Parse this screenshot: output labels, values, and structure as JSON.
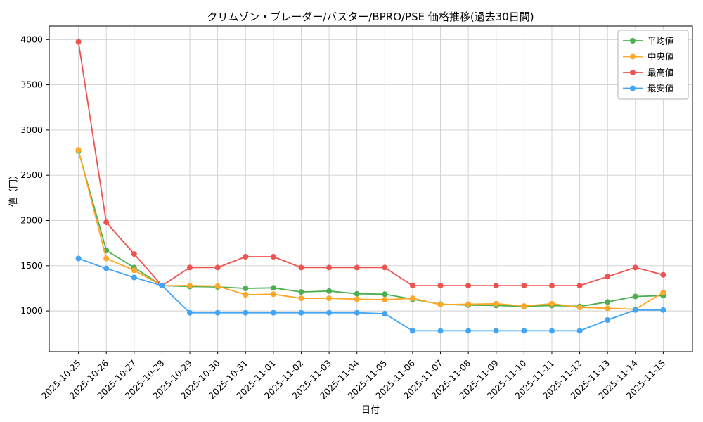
{
  "chart_data": {
    "type": "line",
    "title": "クリムゾン・ブレーダー/バスター/BPRO/PSE 価格推移(過去30日間)",
    "xlabel": "日付",
    "ylabel": "値（円）",
    "grid": true,
    "legend_position": "upper right",
    "ylim": [
      550,
      4150
    ],
    "yticks": [
      1000,
      1500,
      2000,
      2500,
      3000,
      3500,
      4000
    ],
    "x": [
      "2025-10-25",
      "2025-10-26",
      "2025-10-27",
      "2025-10-28",
      "2025-10-29",
      "2025-10-30",
      "2025-10-31",
      "2025-11-01",
      "2025-11-02",
      "2025-11-03",
      "2025-11-04",
      "2025-11-05",
      "2025-11-06",
      "2025-11-07",
      "2025-11-08",
      "2025-11-09",
      "2025-11-10",
      "2025-11-11",
      "2025-11-12",
      "2025-11-13",
      "2025-11-14",
      "2025-11-15"
    ],
    "series": [
      {
        "id": "average",
        "name": "平均値",
        "color": "#4caf50",
        "values": [
          2770,
          1670,
          1480,
          1280,
          1270,
          1265,
          1250,
          1255,
          1210,
          1220,
          1190,
          1185,
          1130,
          1075,
          1065,
          1060,
          1050,
          1060,
          1050,
          1100,
          1160,
          1170
        ]
      },
      {
        "id": "median",
        "name": "中央値",
        "color": "#ffa726",
        "values": [
          2780,
          1580,
          1450,
          1280,
          1280,
          1275,
          1180,
          1185,
          1140,
          1140,
          1130,
          1125,
          1140,
          1070,
          1075,
          1080,
          1055,
          1080,
          1040,
          1030,
          1020,
          1205
        ]
      },
      {
        "id": "max",
        "name": "最高値",
        "color": "#ef5350",
        "values": [
          3975,
          1980,
          1630,
          1280,
          1480,
          1480,
          1600,
          1600,
          1480,
          1480,
          1480,
          1480,
          1280,
          1280,
          1280,
          1280,
          1280,
          1280,
          1280,
          1380,
          1480,
          1400
        ]
      },
      {
        "id": "min",
        "name": "最安値",
        "color": "#42a5f5",
        "values": [
          1580,
          1470,
          1370,
          1280,
          980,
          980,
          980,
          980,
          980,
          980,
          980,
          970,
          780,
          780,
          780,
          780,
          780,
          780,
          780,
          900,
          1010,
          1010
        ]
      }
    ]
  }
}
